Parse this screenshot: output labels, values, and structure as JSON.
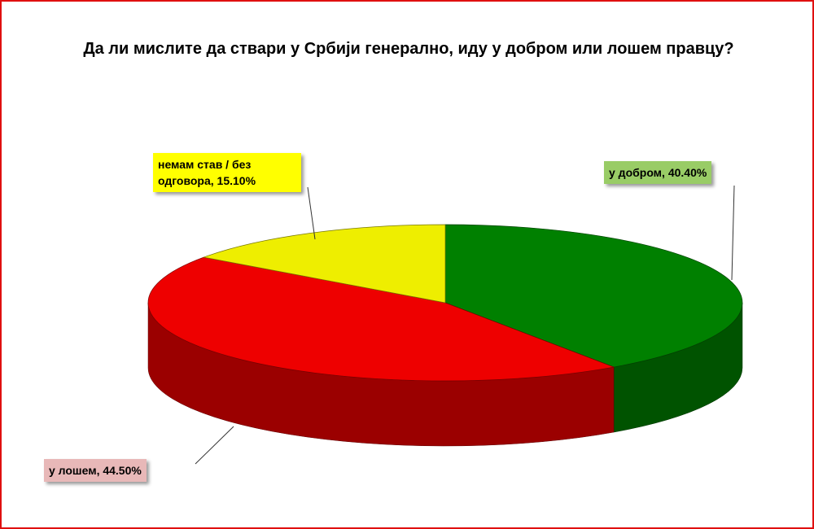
{
  "chart_data": {
    "type": "pie3d",
    "title": "Да ли мислите да ствари у Србији генерално, иду у добром или лошем правцу?",
    "values": [
      40.4,
      44.5,
      15.1
    ],
    "value_labels": [
      "у добром,  40.40%",
      "у лошем, 44.50%",
      "немам став / без одговора, 15.10%"
    ],
    "colors": [
      "#008000",
      "#ee0000",
      "#eeee00"
    ],
    "label_colors": [
      "#99cc66",
      "#e8b8b8",
      "#ffff00"
    ]
  }
}
